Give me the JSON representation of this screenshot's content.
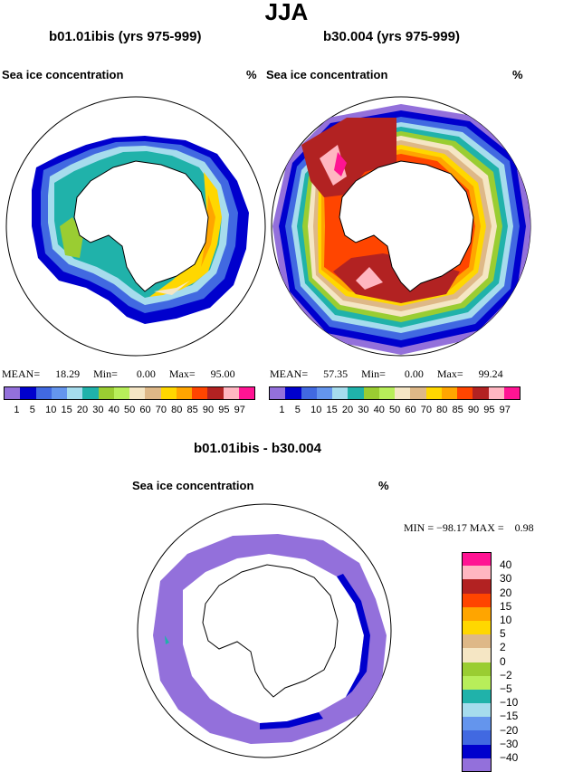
{
  "main_title": "JJA",
  "panels": {
    "left": {
      "title": "b01.01ibis (yrs 975-999)",
      "var_label": "Sea ice concentration",
      "unit": "%",
      "stats": {
        "mean_label": "MEAN=",
        "mean": "18.29",
        "min_label": "Min=",
        "min": "0.00",
        "max_label": "Max=",
        "max": "95.00"
      }
    },
    "right": {
      "title": "b30.004 (yrs 975-999)",
      "var_label": "Sea ice concentration",
      "unit": "%",
      "stats": {
        "mean_label": "MEAN=",
        "mean": "57.35",
        "min_label": "Min=",
        "min": "0.00",
        "max_label": "Max=",
        "max": "99.24"
      }
    },
    "diff": {
      "title": "b01.01ibis - b30.004",
      "var_label": "Sea ice concentration",
      "unit": "%",
      "stats_text": "MIN = −98.17 MAX =    0.98"
    }
  },
  "colorbar_conc": {
    "colors": [
      "#9370db",
      "#0000cd",
      "#4169e1",
      "#6495ed",
      "#a6dced",
      "#20b2aa",
      "#9acd32",
      "#b8ee5a",
      "#f5e6c4",
      "#deb887",
      "#ffd700",
      "#ffa500",
      "#ff4500",
      "#b22222",
      "#ffb6c1",
      "#ff1493"
    ],
    "labels": [
      "1",
      "5",
      "10",
      "15",
      "20",
      "30",
      "40",
      "50",
      "60",
      "70",
      "80",
      "85",
      "90",
      "95",
      "97"
    ]
  },
  "colorbar_diff": {
    "colors_top_to_bottom": [
      "#ff1493",
      "#ffb6c1",
      "#b22222",
      "#ff4500",
      "#ffa500",
      "#ffd700",
      "#deb887",
      "#f5e6c4",
      "#9acd32",
      "#b8ee5a",
      "#20b2aa",
      "#a6dced",
      "#6495ed",
      "#4169e1",
      "#0000cd",
      "#9370db"
    ],
    "labels_top_to_bottom": [
      "40",
      "30",
      "20",
      "15",
      "10",
      "5",
      "2",
      "0",
      "−2",
      "−5",
      "−10",
      "−15",
      "−20",
      "−30",
      "−40"
    ]
  }
}
